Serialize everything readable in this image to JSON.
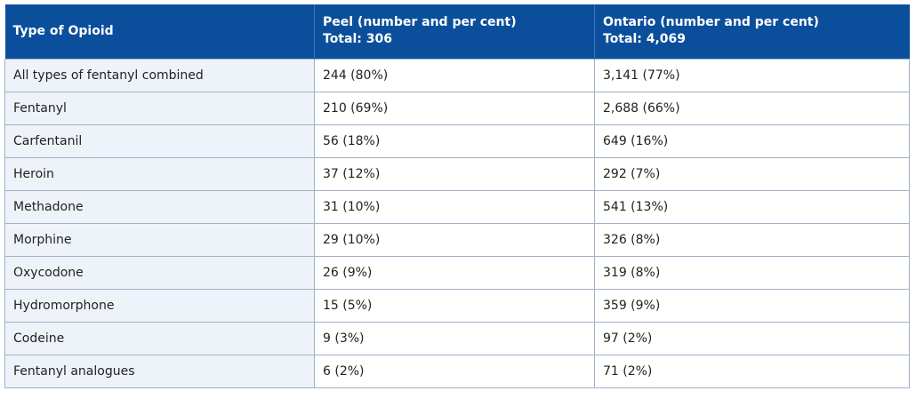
{
  "table": {
    "headers": [
      {
        "line1": "Type of Opioid",
        "line2": ""
      },
      {
        "line1": "Peel (number and per cent)",
        "line2": "Total: 306"
      },
      {
        "line1": "Ontario (number and per cent)",
        "line2": "Total: 4,069"
      }
    ],
    "rows": [
      {
        "type": "All types of fentanyl combined",
        "peel": "244 (80%)",
        "ontario": "3,141 (77%)"
      },
      {
        "type": "Fentanyl",
        "peel": "210 (69%)",
        "ontario": "2,688 (66%)"
      },
      {
        "type": "Carfentanil",
        "peel": "56 (18%)",
        "ontario": "649 (16%)"
      },
      {
        "type": "Heroin",
        "peel": "37 (12%)",
        "ontario": "292 (7%)"
      },
      {
        "type": "Methadone",
        "peel": "31 (10%)",
        "ontario": "541 (13%)"
      },
      {
        "type": "Morphine",
        "peel": "29 (10%)",
        "ontario": "326 (8%)"
      },
      {
        "type": "Oxycodone",
        "peel": "26 (9%)",
        "ontario": "319 (8%)"
      },
      {
        "type": "Hydromorphone",
        "peel": "15 (5%)",
        "ontario": "359 (9%)"
      },
      {
        "type": "Codeine",
        "peel": "9 (3%)",
        "ontario": "97 (2%)"
      },
      {
        "type": "Fentanyl analogues",
        "peel": "6 (2%)",
        "ontario": "71 (2%)"
      }
    ]
  },
  "colors": {
    "header_bg": "#0b4f9c",
    "header_text": "#ffffff",
    "first_col_bg": "#eef3fa",
    "border": "#9fb2c8"
  }
}
